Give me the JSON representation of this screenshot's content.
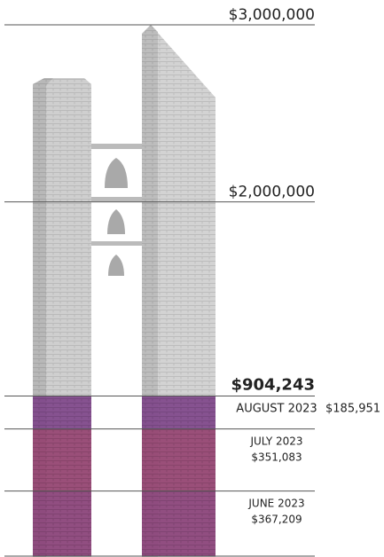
{
  "chart_data": {
    "type": "stacked-progress",
    "ylim": [
      0,
      3000000
    ],
    "yticks": [
      {
        "value": 3000000,
        "label": "$3,000,000"
      },
      {
        "value": 2000000,
        "label": "$2,000,000"
      }
    ],
    "total": 904243,
    "total_label": "$904,243",
    "series": [
      {
        "name": "JUNE 2023",
        "color": "#8a3f78",
        "values": [
          367209
        ],
        "value_labels": [
          "$367,209"
        ]
      },
      {
        "name": "JULY 2023",
        "color": "#94406f",
        "values": [
          351083
        ],
        "value_labels": [
          "$351,083"
        ]
      },
      {
        "name": "AUGUST 2023",
        "color": "#7d4488",
        "values": [
          185951
        ],
        "value_labels": [
          "$185,951"
        ]
      }
    ]
  }
}
